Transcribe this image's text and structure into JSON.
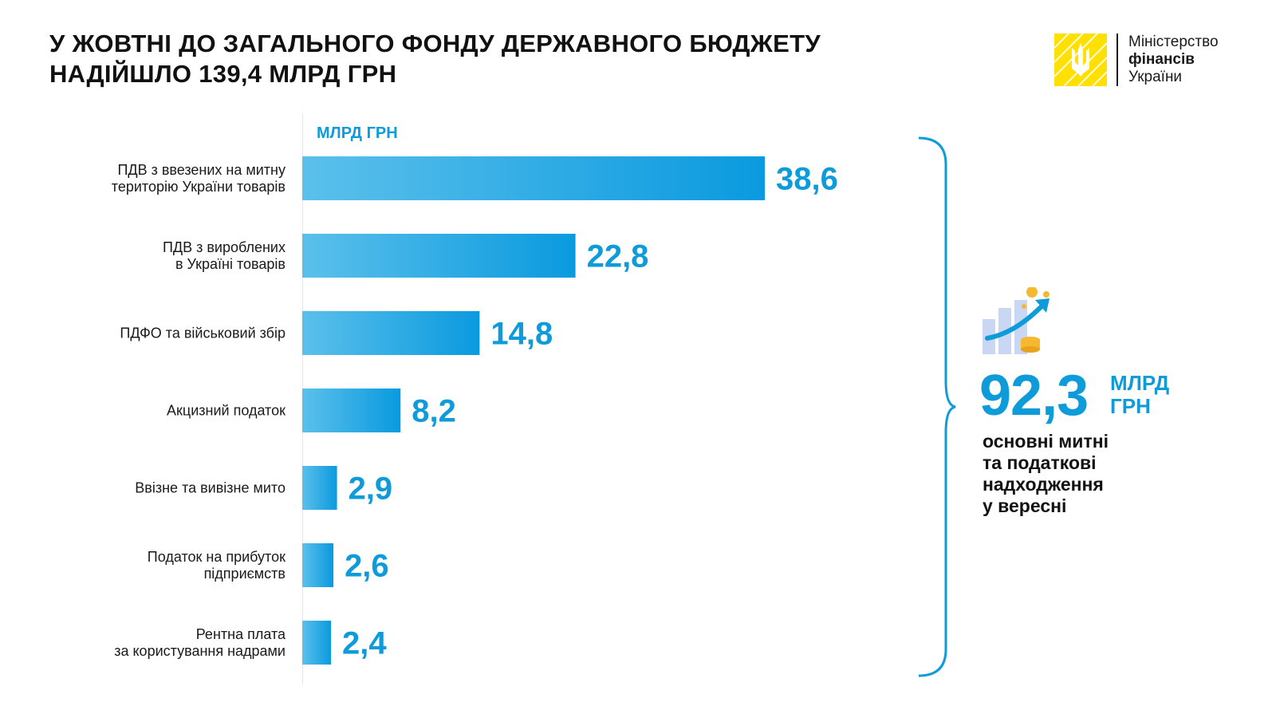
{
  "header": {
    "title_line1": "У ЖОВТНІ ДО ЗАГАЛЬНОГО ФОНДУ ДЕРЖАВНОГО БЮДЖЕТУ",
    "title_line2": "НАДІЙШЛО 139,4  МЛРД ГРН"
  },
  "logo": {
    "line1": "Міністерство",
    "line2": "фінансів",
    "line3": "України",
    "color": "#FFE000"
  },
  "summary": {
    "value": "92,3",
    "unit": "МЛРД ГРН",
    "description": [
      "основні митні",
      "та податкові",
      "надходження",
      "у вересні"
    ],
    "icon": "growth-chart-coins-icon"
  },
  "colors": {
    "accent": "#0E9BD9",
    "bar_light": "#5BC0EB",
    "bar_dark": "#0A9ADF"
  },
  "chart_data": {
    "type": "bar",
    "orientation": "horizontal",
    "unit_label": "МЛРД ГРН",
    "categories": [
      [
        "ПДВ з ввезених на митну",
        "територію України товарів"
      ],
      [
        "ПДВ з вироблених",
        "в Україні товарів"
      ],
      [
        "ПДФО та військовий збір"
      ],
      [
        "Акцизний податок"
      ],
      [
        "Ввізне та вивізне мито"
      ],
      [
        "Податок на прибуток",
        "підприємств"
      ],
      [
        "Рентна плата",
        "за користування надрами"
      ]
    ],
    "values": [
      38.6,
      22.8,
      14.8,
      8.2,
      2.9,
      2.6,
      2.4
    ],
    "value_labels": [
      "38,6",
      "22,8",
      "14,8",
      "8,2",
      "2,9",
      "2,6",
      "2,4"
    ],
    "xlim": [
      0,
      38.6
    ],
    "grid": false,
    "legend": "none"
  }
}
